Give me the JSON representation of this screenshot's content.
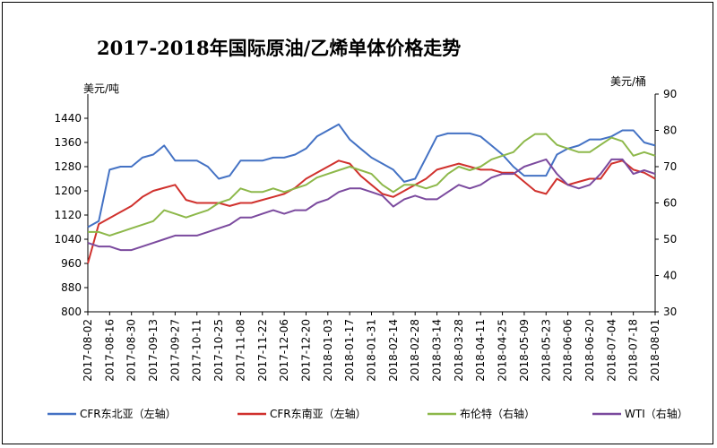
{
  "chart_data": {
    "type": "line",
    "title": "2017-2018年国际原油/乙烯单体价格走势",
    "y_left_label": "美元/吨",
    "y_right_label": "美元/桶",
    "y_left_ticks": [
      800,
      880,
      960,
      1040,
      1120,
      1200,
      1280,
      1360,
      1440
    ],
    "y_right_ticks": [
      30,
      40,
      50,
      60,
      70,
      80,
      90
    ],
    "ylim_left": [
      800,
      1520
    ],
    "ylim_right": [
      30,
      90
    ],
    "grid": false,
    "legend_position": "bottom",
    "x_tick_labels": [
      "2017-08-02",
      "2017-08-16",
      "2017-08-30",
      "2017-09-13",
      "2017-09-27",
      "2017-10-11",
      "2017-10-25",
      "2017-11-08",
      "2017-11-22",
      "2017-12-06",
      "2017-12-20",
      "2018-01-03",
      "2018-01-17",
      "2018-01-31",
      "2018-02-14",
      "2018-02-28",
      "2018-03-14",
      "2018-03-28",
      "2018-04-11",
      "2018-04-25",
      "2018-05-09",
      "2018-05-23",
      "2018-06-06",
      "2018-06-20",
      "2018-07-04",
      "2018-07-18",
      "2018-08-01"
    ],
    "series": [
      {
        "name": "CFR东北亚（左轴）",
        "axis": "left",
        "color": "#4472C4",
        "x": [
          "2017-08-02",
          "2017-08-09",
          "2017-08-16",
          "2017-08-23",
          "2017-08-30",
          "2017-09-06",
          "2017-09-13",
          "2017-09-20",
          "2017-09-27",
          "2017-10-04",
          "2017-10-11",
          "2017-10-18",
          "2017-10-25",
          "2017-11-01",
          "2017-11-08",
          "2017-11-15",
          "2017-11-22",
          "2017-11-29",
          "2017-12-06",
          "2017-12-13",
          "2017-12-20",
          "2017-12-27",
          "2018-01-03",
          "2018-01-10",
          "2018-01-17",
          "2018-01-24",
          "2018-01-31",
          "2018-02-07",
          "2018-02-14",
          "2018-02-21",
          "2018-02-28",
          "2018-03-07",
          "2018-03-14",
          "2018-03-21",
          "2018-03-28",
          "2018-04-04",
          "2018-04-11",
          "2018-04-18",
          "2018-04-25",
          "2018-05-02",
          "2018-05-09",
          "2018-05-16",
          "2018-05-23",
          "2018-05-30",
          "2018-06-06",
          "2018-06-13",
          "2018-06-20",
          "2018-06-27",
          "2018-07-04",
          "2018-07-11",
          "2018-07-18",
          "2018-07-25",
          "2018-08-01"
        ],
        "values": [
          1080,
          1100,
          1270,
          1280,
          1280,
          1310,
          1320,
          1350,
          1300,
          1300,
          1300,
          1280,
          1240,
          1250,
          1300,
          1300,
          1300,
          1310,
          1310,
          1320,
          1340,
          1380,
          1400,
          1420,
          1370,
          1340,
          1310,
          1290,
          1270,
          1230,
          1240,
          1310,
          1380,
          1390,
          1390,
          1390,
          1380,
          1350,
          1320,
          1280,
          1250,
          1250,
          1250,
          1320,
          1340,
          1350,
          1370,
          1370,
          1380,
          1400,
          1400,
          1360,
          1350
        ]
      },
      {
        "name": "CFR东南亚（左轴）",
        "axis": "left",
        "color": "#D0312D",
        "x": [
          "2017-08-02",
          "2017-08-09",
          "2017-08-16",
          "2017-08-23",
          "2017-08-30",
          "2017-09-06",
          "2017-09-13",
          "2017-09-20",
          "2017-09-27",
          "2017-10-04",
          "2017-10-11",
          "2017-10-18",
          "2017-10-25",
          "2017-11-01",
          "2017-11-08",
          "2017-11-15",
          "2017-11-22",
          "2017-11-29",
          "2017-12-06",
          "2017-12-13",
          "2017-12-20",
          "2017-12-27",
          "2018-01-03",
          "2018-01-10",
          "2018-01-17",
          "2018-01-24",
          "2018-01-31",
          "2018-02-07",
          "2018-02-14",
          "2018-02-21",
          "2018-02-28",
          "2018-03-07",
          "2018-03-14",
          "2018-03-21",
          "2018-03-28",
          "2018-04-04",
          "2018-04-11",
          "2018-04-18",
          "2018-04-25",
          "2018-05-02",
          "2018-05-09",
          "2018-05-16",
          "2018-05-23",
          "2018-05-30",
          "2018-06-06",
          "2018-06-13",
          "2018-06-20",
          "2018-06-27",
          "2018-07-04",
          "2018-07-11",
          "2018-07-18",
          "2018-07-25",
          "2018-08-01"
        ],
        "values": [
          960,
          1090,
          1110,
          1130,
          1150,
          1180,
          1200,
          1210,
          1220,
          1170,
          1160,
          1160,
          1160,
          1150,
          1160,
          1160,
          1170,
          1180,
          1190,
          1210,
          1240,
          1260,
          1280,
          1300,
          1290,
          1250,
          1220,
          1190,
          1180,
          1200,
          1220,
          1240,
          1270,
          1280,
          1290,
          1280,
          1270,
          1270,
          1260,
          1260,
          1230,
          1200,
          1190,
          1240,
          1220,
          1230,
          1240,
          1240,
          1290,
          1300,
          1270,
          1260,
          1240
        ]
      },
      {
        "name": "布伦特（右轴）",
        "axis": "right",
        "color": "#8DB84A",
        "x": [
          "2017-08-02",
          "2017-08-09",
          "2017-08-16",
          "2017-08-23",
          "2017-08-30",
          "2017-09-06",
          "2017-09-13",
          "2017-09-20",
          "2017-09-27",
          "2017-10-04",
          "2017-10-11",
          "2017-10-18",
          "2017-10-25",
          "2017-11-01",
          "2017-11-08",
          "2017-11-15",
          "2017-11-22",
          "2017-11-29",
          "2017-12-06",
          "2017-12-13",
          "2017-12-20",
          "2017-12-27",
          "2018-01-03",
          "2018-01-10",
          "2018-01-17",
          "2018-01-24",
          "2018-01-31",
          "2018-02-07",
          "2018-02-14",
          "2018-02-21",
          "2018-02-28",
          "2018-03-07",
          "2018-03-14",
          "2018-03-21",
          "2018-03-28",
          "2018-04-04",
          "2018-04-11",
          "2018-04-18",
          "2018-04-25",
          "2018-05-02",
          "2018-05-09",
          "2018-05-16",
          "2018-05-23",
          "2018-05-30",
          "2018-06-06",
          "2018-06-13",
          "2018-06-20",
          "2018-06-27",
          "2018-07-04",
          "2018-07-11",
          "2018-07-18",
          "2018-07-25",
          "2018-08-01"
        ],
        "values": [
          52,
          52,
          51,
          52,
          53,
          54,
          55,
          58,
          57,
          56,
          57,
          58,
          60,
          61,
          64,
          63,
          63,
          64,
          63,
          64,
          65,
          67,
          68,
          69,
          70,
          69,
          68,
          65,
          63,
          65,
          65,
          64,
          65,
          68,
          70,
          69,
          70,
          72,
          73,
          74,
          77,
          79,
          79,
          76,
          75,
          74,
          74,
          76,
          78,
          77,
          73,
          74,
          73
        ]
      },
      {
        "name": "WTI（右轴）",
        "axis": "right",
        "color": "#7B4A9E",
        "x": [
          "2017-08-02",
          "2017-08-09",
          "2017-08-16",
          "2017-08-23",
          "2017-08-30",
          "2017-09-06",
          "2017-09-13",
          "2017-09-20",
          "2017-09-27",
          "2017-10-04",
          "2017-10-11",
          "2017-10-18",
          "2017-10-25",
          "2017-11-01",
          "2017-11-08",
          "2017-11-15",
          "2017-11-22",
          "2017-11-29",
          "2017-12-06",
          "2017-12-13",
          "2017-12-20",
          "2017-12-27",
          "2018-01-03",
          "2018-01-10",
          "2018-01-17",
          "2018-01-24",
          "2018-01-31",
          "2018-02-07",
          "2018-02-14",
          "2018-02-21",
          "2018-02-28",
          "2018-03-07",
          "2018-03-14",
          "2018-03-21",
          "2018-03-28",
          "2018-04-04",
          "2018-04-11",
          "2018-04-18",
          "2018-04-25",
          "2018-05-02",
          "2018-05-09",
          "2018-05-16",
          "2018-05-23",
          "2018-05-30",
          "2018-06-06",
          "2018-06-13",
          "2018-06-20",
          "2018-06-27",
          "2018-07-04",
          "2018-07-11",
          "2018-07-18",
          "2018-07-25",
          "2018-08-01"
        ],
        "values": [
          49,
          48,
          48,
          47,
          47,
          48,
          49,
          50,
          51,
          51,
          51,
          52,
          53,
          54,
          56,
          56,
          57,
          58,
          57,
          58,
          58,
          60,
          61,
          63,
          64,
          64,
          63,
          62,
          59,
          61,
          62,
          61,
          61,
          63,
          65,
          64,
          65,
          67,
          68,
          68,
          70,
          71,
          72,
          68,
          65,
          64,
          65,
          68,
          72,
          72,
          68,
          69,
          68
        ]
      }
    ]
  }
}
